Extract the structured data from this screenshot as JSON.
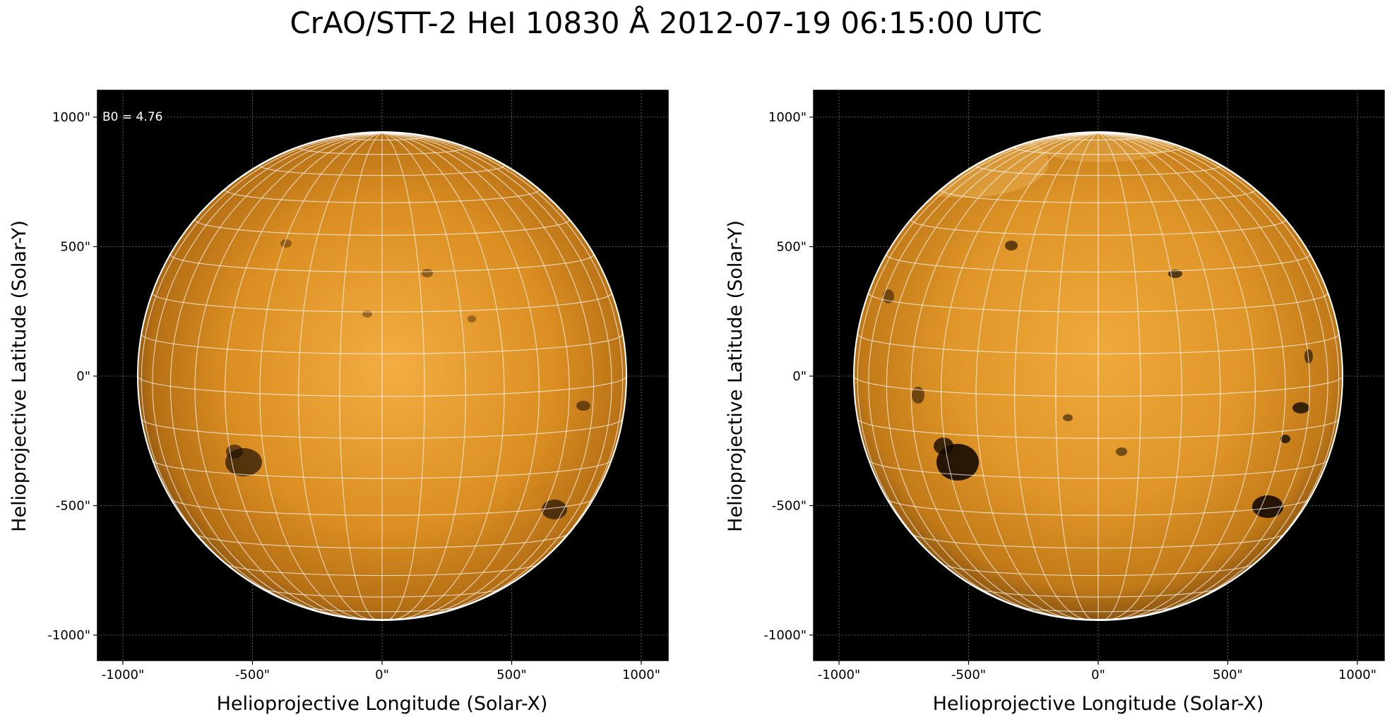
{
  "title": "CrAO/STT-2 HeI 10830 Å 2012-07-19 06:15:00 UTC",
  "colors": {
    "background": "#000000",
    "disk_center": "#f0a93a",
    "disk_mid": "#d58a1e",
    "disk_limb": "#8a5510",
    "grid": "#ffffff",
    "frame_grid": "#9a9a9a"
  },
  "panels": [
    {
      "annotation": "B0 = 4.76",
      "xlabel": "Helioprojective Longitude (Solar-X)",
      "ylabel": "Helioprojective Latitude (Solar-Y)",
      "xticks": [
        "-1000\"",
        "-500\"",
        "0\"",
        "500\"",
        "1000\""
      ],
      "yticks": [
        "1000\"",
        "500\"",
        "0\"",
        "-500\"",
        "-1000\""
      ],
      "contrast": "normal"
    },
    {
      "annotation": "",
      "xlabel": "Helioprojective Longitude (Solar-X)",
      "ylabel": "Helioprojective Latitude (Solar-Y)",
      "xticks": [
        "-1000\"",
        "-500\"",
        "0\"",
        "500\"",
        "1000\""
      ],
      "yticks": [
        "1000\"",
        "500\"",
        "0\"",
        "-500\"",
        "-1000\""
      ],
      "contrast": "enhanced"
    }
  ]
}
